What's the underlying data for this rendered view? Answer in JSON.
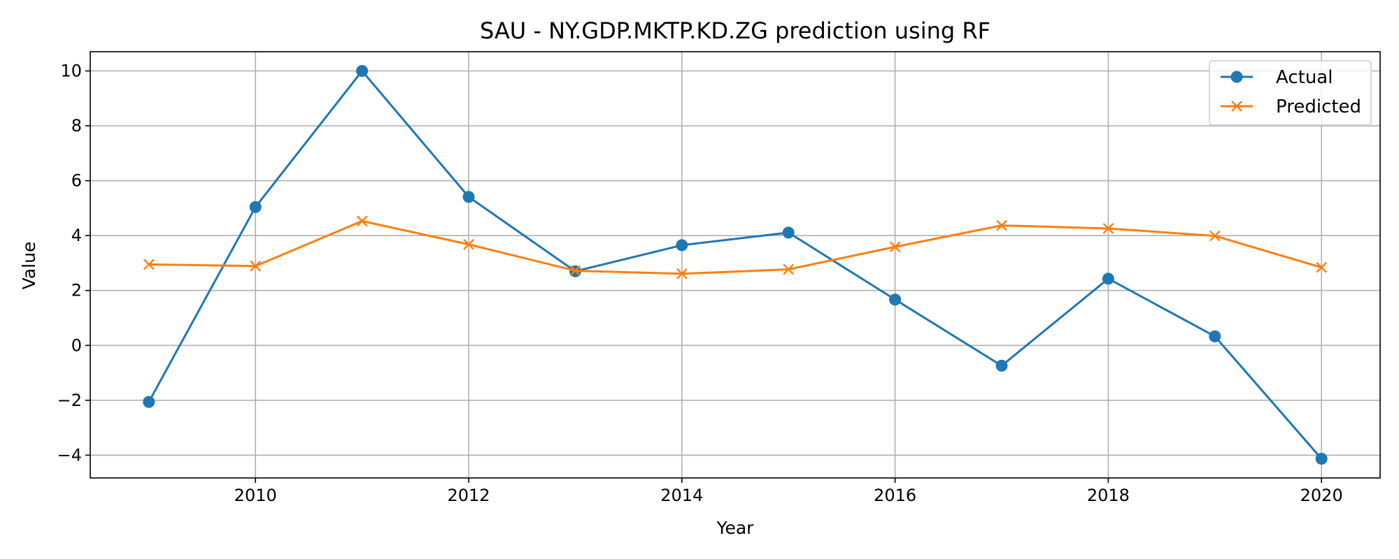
{
  "chart_data": {
    "type": "line",
    "title": "SAU - NY.GDP.MKTP.KD.ZG prediction using RF",
    "xlabel": "Year",
    "ylabel": "Value",
    "x": [
      2009,
      2010,
      2011,
      2012,
      2013,
      2014,
      2015,
      2016,
      2017,
      2018,
      2019,
      2020
    ],
    "series": [
      {
        "name": "Actual",
        "color": "#1f77b4",
        "marker": "circle",
        "values": [
          -2.06,
          5.04,
          10.0,
          5.41,
          2.7,
          3.65,
          4.11,
          1.67,
          -0.74,
          2.43,
          0.33,
          -4.13
        ]
      },
      {
        "name": "Predicted",
        "color": "#ff7f0e",
        "marker": "x",
        "values": [
          2.95,
          2.89,
          4.53,
          3.68,
          2.72,
          2.61,
          2.77,
          3.59,
          4.37,
          4.26,
          3.99,
          2.84
        ]
      }
    ],
    "xlim": [
      2008.45,
      2020.55
    ],
    "ylim": [
      -4.83,
      10.7
    ],
    "xticks": [
      "2010",
      "2012",
      "2014",
      "2016",
      "2018",
      "2020"
    ],
    "yticks": [
      "−4",
      "−2",
      "0",
      "2",
      "4",
      "6",
      "8",
      "10"
    ],
    "grid": true,
    "legend": "top-right"
  }
}
